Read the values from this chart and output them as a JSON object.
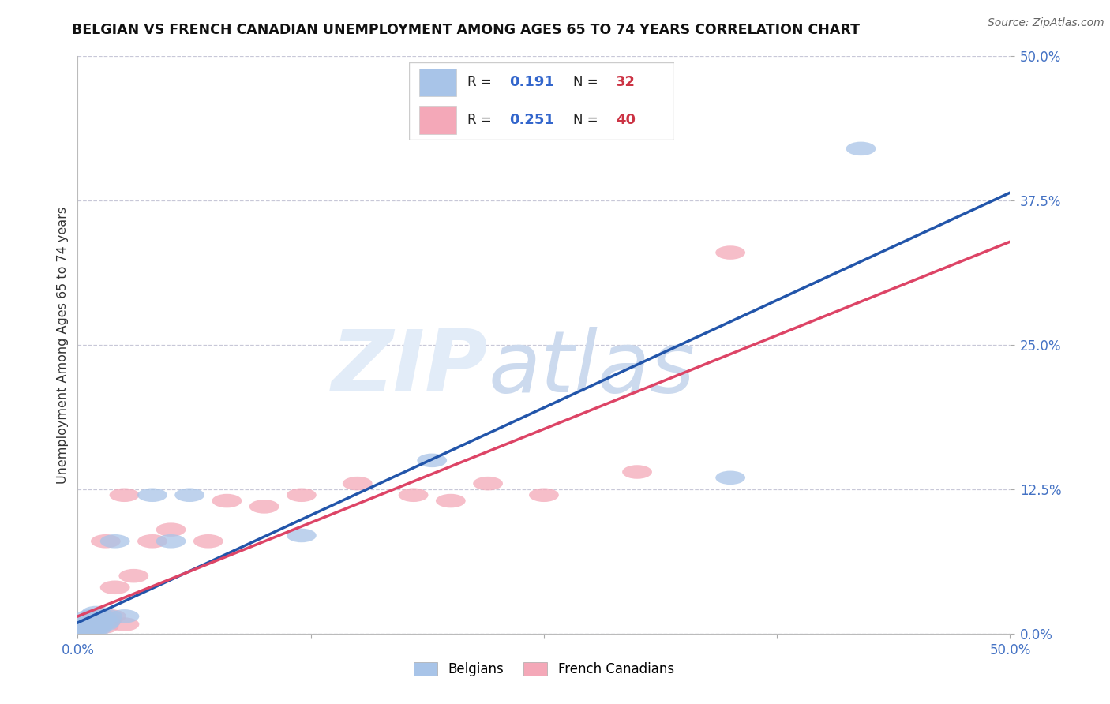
{
  "title": "BELGIAN VS FRENCH CANADIAN UNEMPLOYMENT AMONG AGES 65 TO 74 YEARS CORRELATION CHART",
  "source": "Source: ZipAtlas.com",
  "ylabel": "Unemployment Among Ages 65 to 74 years",
  "xlim": [
    0.0,
    0.5
  ],
  "ylim": [
    0.0,
    0.5
  ],
  "ytick_values": [
    0.0,
    0.125,
    0.25,
    0.375,
    0.5
  ],
  "ytick_labels": [
    "0.0%",
    "12.5%",
    "25.0%",
    "37.5%",
    "50.0%"
  ],
  "xtick_values": [
    0.0,
    0.125,
    0.25,
    0.375,
    0.5
  ],
  "xtick_labels": [
    "0.0%",
    "",
    "",
    "",
    "50.0%"
  ],
  "belgian_R": 0.191,
  "belgian_N": 32,
  "french_R": 0.251,
  "french_N": 40,
  "belgian_color": "#a8c4e8",
  "french_color": "#f4a8b8",
  "belgian_line_color": "#2255aa",
  "french_line_color": "#dd4466",
  "belgian_x": [
    0.002,
    0.003,
    0.004,
    0.004,
    0.005,
    0.005,
    0.006,
    0.006,
    0.007,
    0.007,
    0.008,
    0.008,
    0.009,
    0.009,
    0.01,
    0.01,
    0.01,
    0.011,
    0.012,
    0.013,
    0.014,
    0.015,
    0.016,
    0.02,
    0.025,
    0.04,
    0.05,
    0.06,
    0.12,
    0.19,
    0.35,
    0.42
  ],
  "belgian_y": [
    0.002,
    0.005,
    0.003,
    0.008,
    0.004,
    0.01,
    0.006,
    0.012,
    0.008,
    0.015,
    0.003,
    0.007,
    0.005,
    0.01,
    0.004,
    0.008,
    0.018,
    0.006,
    0.01,
    0.014,
    0.008,
    0.01,
    0.015,
    0.08,
    0.015,
    0.12,
    0.08,
    0.12,
    0.085,
    0.15,
    0.135,
    0.42
  ],
  "french_x": [
    0.002,
    0.003,
    0.004,
    0.005,
    0.005,
    0.006,
    0.006,
    0.007,
    0.007,
    0.008,
    0.008,
    0.009,
    0.009,
    0.01,
    0.01,
    0.011,
    0.012,
    0.013,
    0.014,
    0.015,
    0.015,
    0.016,
    0.018,
    0.02,
    0.025,
    0.025,
    0.03,
    0.04,
    0.05,
    0.07,
    0.08,
    0.1,
    0.12,
    0.15,
    0.18,
    0.2,
    0.22,
    0.25,
    0.3,
    0.35
  ],
  "french_y": [
    0.003,
    0.004,
    0.006,
    0.005,
    0.01,
    0.004,
    0.01,
    0.006,
    0.012,
    0.005,
    0.01,
    0.008,
    0.015,
    0.006,
    0.012,
    0.008,
    0.01,
    0.015,
    0.006,
    0.01,
    0.08,
    0.012,
    0.015,
    0.04,
    0.008,
    0.12,
    0.05,
    0.08,
    0.09,
    0.08,
    0.115,
    0.11,
    0.12,
    0.13,
    0.12,
    0.115,
    0.13,
    0.12,
    0.14,
    0.33
  ]
}
